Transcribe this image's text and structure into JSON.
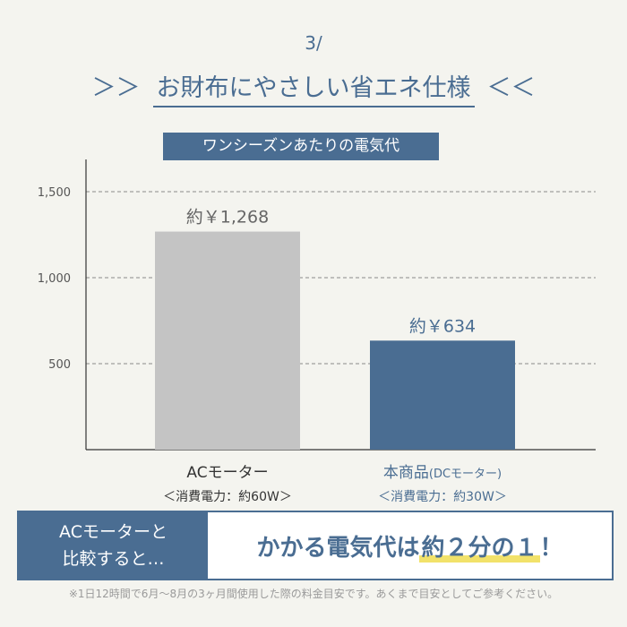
{
  "step_label": "3/",
  "headline": {
    "left_mark": "＞＞",
    "text": "お財布にやさしい省エネ仕様",
    "right_mark": "＜＜"
  },
  "chart_data": {
    "type": "bar",
    "title": "ワンシーズンあたりの電気代",
    "categories": [
      "ACモーター",
      "本商品"
    ],
    "values": [
      1268,
      634
    ],
    "data_labels": [
      "約￥1,268",
      "約￥634"
    ],
    "yticks": [
      500,
      1000,
      1500
    ],
    "ytick_labels": [
      "500",
      "1,000",
      "1,500"
    ],
    "ylim": [
      0,
      1500
    ],
    "grid": true,
    "colors": [
      "#c4c4c4",
      "#4a6d92"
    ]
  },
  "category_details": [
    {
      "label": "ACモーター",
      "note": "",
      "sub": "＜消費電力：約60W＞"
    },
    {
      "label": "本商品",
      "note": "(DCモーター)",
      "sub": "＜消費電力：約30W＞"
    }
  ],
  "compare": {
    "left_line1": "ACモーターと",
    "left_line2": "比較すると…",
    "right_pre": "かかる電気代は",
    "right_highlight": "約２分の１",
    "right_post": "！"
  },
  "footnote": "※1日12時間で6月〜8月の3ヶ月間使用した際の料金目安です。あくまで目安としてご参考ください。"
}
